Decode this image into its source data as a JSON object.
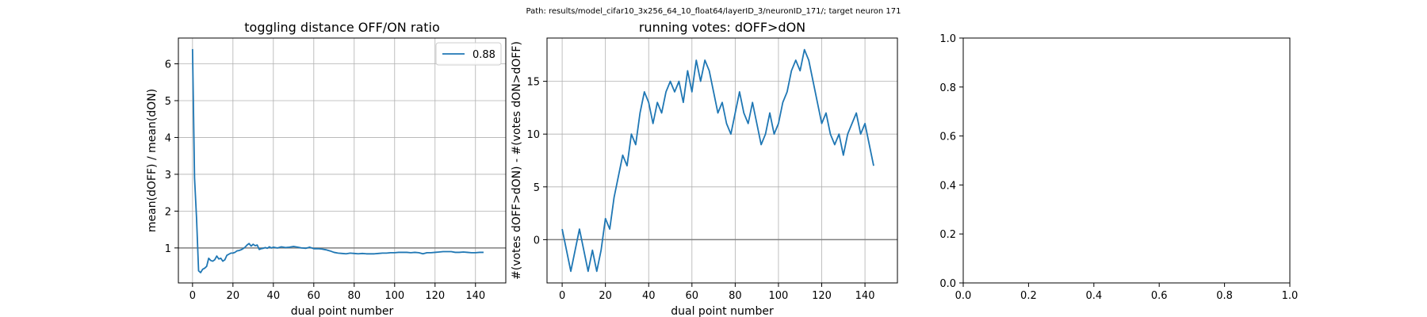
{
  "figure": {
    "suptitle": "Path: results/model_cifar10_3x256_64_10_float64/layerID_3/neuronID_171/; target neuron 171"
  },
  "chart_data": [
    {
      "type": "line",
      "title": "toggling distance OFF/ON ratio",
      "xlabel": "dual point number",
      "ylabel": "mean(dOFF) / mean(dON)",
      "xlim": [
        -7,
        155
      ],
      "ylim": [
        0.05,
        6.7
      ],
      "xticks": [
        0,
        20,
        40,
        60,
        80,
        100,
        120,
        140
      ],
      "yticks": [
        1,
        2,
        3,
        4,
        5,
        6
      ],
      "grid": true,
      "legend": {
        "placement": "top-right",
        "entries": [
          "0.88"
        ]
      },
      "hline": 1,
      "series": [
        {
          "name": "0.88",
          "color": "#1f77b4",
          "x": [
            0,
            1,
            2,
            3,
            4,
            5,
            6,
            7,
            8,
            9,
            10,
            11,
            12,
            13,
            14,
            15,
            16,
            17,
            18,
            19,
            20,
            21,
            22,
            23,
            24,
            25,
            26,
            27,
            28,
            29,
            30,
            31,
            32,
            33,
            34,
            35,
            36,
            37,
            38,
            39,
            40,
            42,
            44,
            46,
            48,
            50,
            52,
            54,
            56,
            58,
            60,
            62,
            64,
            66,
            68,
            70,
            72,
            74,
            76,
            78,
            80,
            82,
            84,
            86,
            88,
            90,
            92,
            94,
            96,
            98,
            100,
            102,
            104,
            106,
            108,
            110,
            112,
            114,
            116,
            118,
            120,
            122,
            124,
            126,
            128,
            130,
            132,
            134,
            136,
            138,
            140,
            142,
            144
          ],
          "values": [
            6.4,
            2.9,
            1.8,
            0.38,
            0.33,
            0.42,
            0.45,
            0.5,
            0.72,
            0.66,
            0.64,
            0.68,
            0.78,
            0.7,
            0.72,
            0.64,
            0.68,
            0.8,
            0.83,
            0.86,
            0.86,
            0.88,
            0.92,
            0.93,
            0.95,
            0.98,
            1.02,
            1.08,
            1.12,
            1.05,
            1.1,
            1.06,
            1.08,
            0.96,
            0.98,
            0.99,
            1.01,
            0.99,
            1.03,
            1.0,
            1.02,
            1.0,
            1.03,
            1.01,
            1.02,
            1.04,
            1.02,
            1.0,
            0.99,
            1.02,
            0.98,
            0.98,
            0.97,
            0.95,
            0.92,
            0.88,
            0.86,
            0.85,
            0.84,
            0.86,
            0.85,
            0.84,
            0.85,
            0.84,
            0.84,
            0.84,
            0.85,
            0.86,
            0.86,
            0.87,
            0.87,
            0.88,
            0.88,
            0.88,
            0.87,
            0.88,
            0.87,
            0.84,
            0.87,
            0.87,
            0.88,
            0.89,
            0.9,
            0.9,
            0.9,
            0.88,
            0.88,
            0.89,
            0.88,
            0.87,
            0.87,
            0.88,
            0.88
          ]
        }
      ]
    },
    {
      "type": "line",
      "title": "running votes: dOFF>dON",
      "xlabel": "dual point number",
      "ylabel": "#(votes dOFF>dON) - #(votes dON>dOFF)",
      "xlim": [
        -7,
        155
      ],
      "ylim": [
        -4.1,
        19.1
      ],
      "xticks": [
        0,
        20,
        40,
        60,
        80,
        100,
        120,
        140
      ],
      "yticks": [
        0,
        5,
        10,
        15
      ],
      "grid": true,
      "hline": 0,
      "series": [
        {
          "color": "#1f77b4",
          "x": [
            0,
            2,
            4,
            6,
            8,
            10,
            12,
            14,
            16,
            18,
            20,
            22,
            24,
            26,
            28,
            30,
            32,
            34,
            36,
            38,
            40,
            42,
            44,
            46,
            48,
            50,
            52,
            54,
            56,
            58,
            60,
            62,
            64,
            66,
            68,
            70,
            72,
            74,
            76,
            78,
            80,
            82,
            84,
            86,
            88,
            90,
            92,
            94,
            96,
            98,
            100,
            102,
            104,
            106,
            108,
            110,
            112,
            114,
            116,
            118,
            120,
            122,
            124,
            126,
            128,
            130,
            132,
            134,
            136,
            138,
            140,
            142,
            144
          ],
          "values": [
            1,
            -1,
            -3,
            -1,
            1,
            -1,
            -3,
            -1,
            -3,
            -1,
            2,
            1,
            4,
            6,
            8,
            7,
            10,
            9,
            12,
            14,
            13,
            11,
            13,
            12,
            14,
            15,
            14,
            15,
            13,
            16,
            14,
            17,
            15,
            17,
            16,
            14,
            12,
            13,
            11,
            10,
            12,
            14,
            12,
            11,
            13,
            11,
            9,
            10,
            12,
            10,
            11,
            13,
            14,
            16,
            17,
            16,
            18,
            17,
            15,
            13,
            11,
            12,
            10,
            9,
            10,
            8,
            10,
            11,
            12,
            10,
            11,
            9,
            7
          ]
        }
      ]
    },
    {
      "type": "line",
      "title": "",
      "xlabel": "",
      "ylabel": "",
      "xlim": [
        0,
        1
      ],
      "ylim": [
        0,
        1
      ],
      "xticks": [
        0.0,
        0.2,
        0.4,
        0.6,
        0.8,
        1.0
      ],
      "yticks": [
        0.0,
        0.2,
        0.4,
        0.6,
        0.8,
        1.0
      ],
      "grid": false,
      "series": []
    }
  ]
}
